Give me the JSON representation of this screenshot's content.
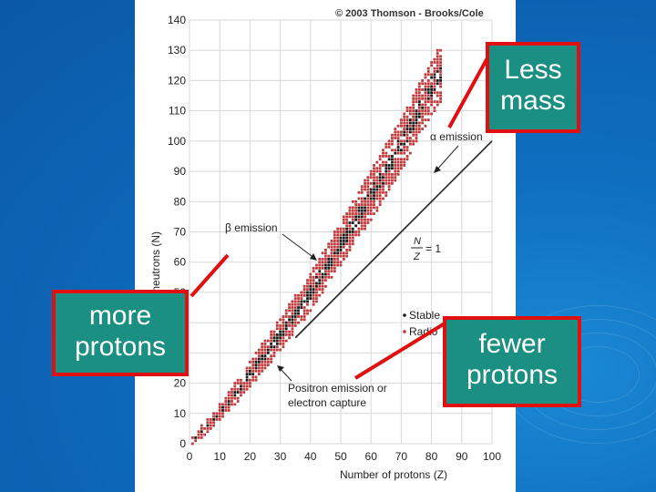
{
  "copyright": "© 2003 Thomson - Brooks/Cole",
  "callouts": {
    "less_mass": "Less mass",
    "more_protons": "more protons",
    "fewer_protons": "fewer protons"
  },
  "annotations": {
    "alpha_emission": "α emission",
    "beta_emission": "β emission",
    "positron_line1": "Positron emission or",
    "positron_line2": "electron capture",
    "ratio_n": "N",
    "ratio_z": "Z",
    "ratio_eq": "= 1",
    "legend_stable": "Stable",
    "legend_radio": "Radio"
  },
  "colors": {
    "callout_fill": "#1a8f82",
    "callout_border": "#e01010",
    "stable_dot": "#1a1a1a",
    "radioactive_dot": "#c0393b"
  },
  "chart_data": {
    "type": "scatter",
    "xlabel": "Number of protons (Z)",
    "ylabel": "Number of neutrons (N)",
    "xlim": [
      0,
      100
    ],
    "ylim": [
      0,
      140
    ],
    "xticks": [
      0,
      10,
      20,
      30,
      40,
      50,
      60,
      70,
      80,
      90,
      100
    ],
    "yticks": [
      0,
      10,
      20,
      30,
      40,
      50,
      60,
      70,
      80,
      90,
      100,
      110,
      120,
      130,
      140
    ],
    "reference_line": {
      "label": "N/Z = 1",
      "points": [
        [
          0,
          0
        ],
        [
          100,
          100
        ]
      ]
    },
    "band": {
      "description": "band of stability",
      "z_range": [
        1,
        83
      ],
      "center_n": [
        [
          0,
          0
        ],
        [
          10,
          10
        ],
        [
          20,
          23
        ],
        [
          30,
          36
        ],
        [
          40,
          50
        ],
        [
          50,
          66
        ],
        [
          60,
          82
        ],
        [
          70,
          99
        ],
        [
          80,
          118
        ],
        [
          83,
          122
        ]
      ],
      "half_width_n": [
        [
          0,
          1
        ],
        [
          20,
          4
        ],
        [
          40,
          6
        ],
        [
          60,
          8
        ],
        [
          83,
          9
        ]
      ]
    },
    "series": [
      {
        "name": "Stable",
        "color": "#1a1a1a"
      },
      {
        "name": "Radio",
        "color": "#c0393b"
      }
    ]
  }
}
